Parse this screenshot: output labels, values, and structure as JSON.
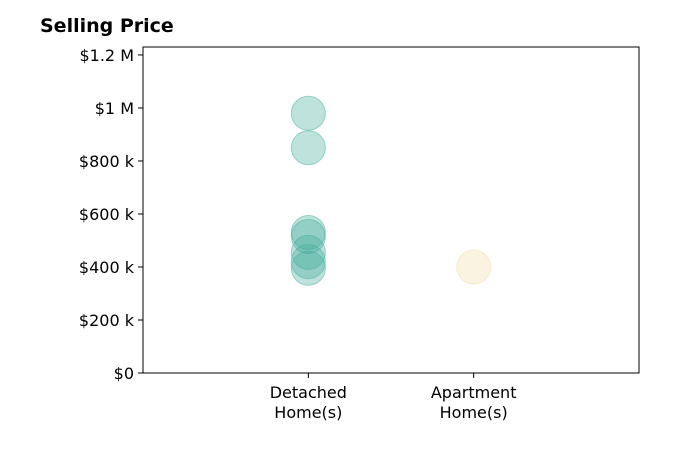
{
  "chart_data": {
    "type": "scatter",
    "title": "Selling Price",
    "xlabel": "",
    "ylabel": "",
    "categories": [
      "Detached\nHome(s)",
      "Apartment\nHome(s)"
    ],
    "xlim": [
      -1,
      2
    ],
    "ylim": [
      0,
      1230000
    ],
    "y_ticks": [
      {
        "value": 0,
        "label": "$0"
      },
      {
        "value": 200000,
        "label": "$200 k"
      },
      {
        "value": 400000,
        "label": "$400 k"
      },
      {
        "value": 600000,
        "label": "$600 k"
      },
      {
        "value": 800000,
        "label": "$800 k"
      },
      {
        "value": 1000000,
        "label": "$1 M"
      },
      {
        "value": 1200000,
        "label": "$1.2 M"
      }
    ],
    "grid": false,
    "legend": "none",
    "series": [
      {
        "category": "Detached\nHome(s)",
        "color": "#45ad9c",
        "values": [
          980000,
          850000,
          530000,
          515000,
          455000,
          420000,
          395000
        ]
      },
      {
        "category": "Apartment\nHome(s)",
        "color": "#f2dda8",
        "values": [
          400000
        ]
      }
    ]
  }
}
